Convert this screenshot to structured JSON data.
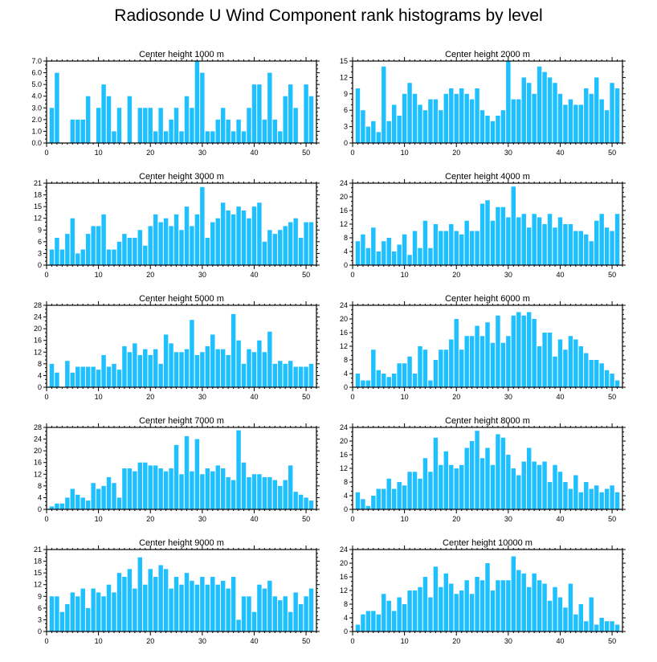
{
  "title": "Radiosonde U Wind Component rank histograms by level",
  "bar_color": "#1ec0ff",
  "chart_data": [
    {
      "type": "bar",
      "title": "Center height 1000 m",
      "ylim": [
        0,
        7
      ],
      "yticks": [
        "0.0",
        "1.0",
        "2.0",
        "3.0",
        "4.0",
        "5.0",
        "6.0",
        "7.0"
      ],
      "xlim": [
        0,
        52
      ],
      "xticks": [
        0,
        10,
        20,
        30,
        40,
        50
      ],
      "x": [
        1,
        2,
        3,
        4,
        5,
        6,
        7,
        8,
        9,
        10,
        11,
        12,
        13,
        14,
        15,
        16,
        17,
        18,
        19,
        20,
        21,
        22,
        23,
        24,
        25,
        26,
        27,
        28,
        29,
        30,
        31,
        32,
        33,
        34,
        35,
        36,
        37,
        38,
        39,
        40,
        41,
        42,
        43,
        44,
        45,
        46,
        47,
        48,
        49,
        50,
        51
      ],
      "values": [
        3,
        6,
        0,
        0,
        2,
        2,
        2,
        4,
        0,
        3,
        5,
        4,
        1,
        3,
        0,
        4,
        0,
        3,
        3,
        3,
        1,
        3,
        1,
        2,
        3,
        1,
        4,
        3,
        7,
        6,
        1,
        1,
        2,
        3,
        2,
        1,
        2,
        1,
        3,
        5,
        5,
        2,
        6,
        2,
        1,
        4,
        5,
        3,
        0,
        5,
        4
      ]
    },
    {
      "type": "bar",
      "title": "Center height 2000 m",
      "ylim": [
        0,
        15
      ],
      "yticks": [
        "0",
        "3",
        "6",
        "9",
        "12",
        "15"
      ],
      "xlim": [
        0,
        52
      ],
      "xticks": [
        0,
        10,
        20,
        30,
        40,
        50
      ],
      "x": [
        1,
        2,
        3,
        4,
        5,
        6,
        7,
        8,
        9,
        10,
        11,
        12,
        13,
        14,
        15,
        16,
        17,
        18,
        19,
        20,
        21,
        22,
        23,
        24,
        25,
        26,
        27,
        28,
        29,
        30,
        31,
        32,
        33,
        34,
        35,
        36,
        37,
        38,
        39,
        40,
        41,
        42,
        43,
        44,
        45,
        46,
        47,
        48,
        49,
        50,
        51
      ],
      "values": [
        10,
        6,
        3,
        4,
        2,
        14,
        4,
        7,
        5,
        9,
        11,
        9,
        7,
        6,
        8,
        8,
        6,
        9,
        10,
        9,
        10,
        9,
        8,
        10,
        6,
        5,
        4,
        5,
        6,
        15,
        8,
        8,
        12,
        11,
        9,
        14,
        13,
        12,
        11,
        9,
        7,
        8,
        7,
        7,
        10,
        9,
        12,
        8,
        6,
        11,
        10
      ]
    },
    {
      "type": "bar",
      "title": "Center height 3000 m",
      "ylim": [
        0,
        21
      ],
      "yticks": [
        "0",
        "3",
        "6",
        "9",
        "12",
        "15",
        "18",
        "21"
      ],
      "xlim": [
        0,
        52
      ],
      "xticks": [
        0,
        10,
        20,
        30,
        40,
        50
      ],
      "x": [
        1,
        2,
        3,
        4,
        5,
        6,
        7,
        8,
        9,
        10,
        11,
        12,
        13,
        14,
        15,
        16,
        17,
        18,
        19,
        20,
        21,
        22,
        23,
        24,
        25,
        26,
        27,
        28,
        29,
        30,
        31,
        32,
        33,
        34,
        35,
        36,
        37,
        38,
        39,
        40,
        41,
        42,
        43,
        44,
        45,
        46,
        47,
        48,
        49,
        50,
        51
      ],
      "values": [
        4,
        7,
        4,
        8,
        12,
        3,
        4,
        8,
        10,
        10,
        13,
        4,
        4,
        6,
        8,
        7,
        7,
        9,
        5,
        10,
        13,
        11,
        12,
        10,
        13,
        9,
        15,
        10,
        13,
        20,
        7,
        11,
        12,
        16,
        14,
        13,
        15,
        14,
        12,
        15,
        16,
        6,
        9,
        8,
        9,
        10,
        11,
        12,
        7,
        11,
        11
      ]
    },
    {
      "type": "bar",
      "title": "Center height 4000 m",
      "ylim": [
        0,
        24
      ],
      "yticks": [
        "0",
        "4",
        "8",
        "12",
        "16",
        "20",
        "24"
      ],
      "xlim": [
        0,
        52
      ],
      "xticks": [
        0,
        10,
        20,
        30,
        40,
        50
      ],
      "x": [
        1,
        2,
        3,
        4,
        5,
        6,
        7,
        8,
        9,
        10,
        11,
        12,
        13,
        14,
        15,
        16,
        17,
        18,
        19,
        20,
        21,
        22,
        23,
        24,
        25,
        26,
        27,
        28,
        29,
        30,
        31,
        32,
        33,
        34,
        35,
        36,
        37,
        38,
        39,
        40,
        41,
        42,
        43,
        44,
        45,
        46,
        47,
        48,
        49,
        50,
        51
      ],
      "values": [
        7,
        9,
        5,
        11,
        4,
        7,
        8,
        4,
        6,
        9,
        3,
        10,
        5,
        13,
        5,
        12,
        10,
        10,
        12,
        10,
        9,
        13,
        10,
        10,
        18,
        19,
        13,
        17,
        17,
        14,
        23,
        14,
        15,
        11,
        15,
        14,
        12,
        15,
        11,
        14,
        12,
        12,
        10,
        10,
        9,
        7,
        13,
        15,
        11,
        10,
        15
      ]
    },
    {
      "type": "bar",
      "title": "Center height 5000 m",
      "ylim": [
        0,
        28
      ],
      "yticks": [
        "0",
        "4",
        "8",
        "12",
        "16",
        "20",
        "24",
        "28"
      ],
      "xlim": [
        0,
        52
      ],
      "xticks": [
        0,
        10,
        20,
        30,
        40,
        50
      ],
      "x": [
        1,
        2,
        3,
        4,
        5,
        6,
        7,
        8,
        9,
        10,
        11,
        12,
        13,
        14,
        15,
        16,
        17,
        18,
        19,
        20,
        21,
        22,
        23,
        24,
        25,
        26,
        27,
        28,
        29,
        30,
        31,
        32,
        33,
        34,
        35,
        36,
        37,
        38,
        39,
        40,
        41,
        42,
        43,
        44,
        45,
        46,
        47,
        48,
        49,
        50,
        51
      ],
      "values": [
        8,
        5,
        0,
        9,
        5,
        7,
        7,
        7,
        7,
        6,
        11,
        7,
        8,
        6,
        14,
        12,
        15,
        11,
        13,
        11,
        13,
        8,
        18,
        15,
        12,
        12,
        13,
        23,
        11,
        12,
        14,
        18,
        13,
        13,
        11,
        25,
        16,
        8,
        13,
        12,
        16,
        12,
        19,
        8,
        9,
        8,
        9,
        7,
        7,
        7,
        8
      ]
    },
    {
      "type": "bar",
      "title": "Center height 6000 m",
      "ylim": [
        0,
        24
      ],
      "yticks": [
        "0",
        "4",
        "8",
        "12",
        "16",
        "20",
        "24"
      ],
      "xlim": [
        0,
        52
      ],
      "xticks": [
        0,
        10,
        20,
        30,
        40,
        50
      ],
      "x": [
        1,
        2,
        3,
        4,
        5,
        6,
        7,
        8,
        9,
        10,
        11,
        12,
        13,
        14,
        15,
        16,
        17,
        18,
        19,
        20,
        21,
        22,
        23,
        24,
        25,
        26,
        27,
        28,
        29,
        30,
        31,
        32,
        33,
        34,
        35,
        36,
        37,
        38,
        39,
        40,
        41,
        42,
        43,
        44,
        45,
        46,
        47,
        48,
        49,
        50,
        51
      ],
      "values": [
        4,
        2,
        2,
        11,
        5,
        4,
        3,
        4,
        7,
        7,
        9,
        4,
        12,
        11,
        2,
        8,
        11,
        11,
        14,
        20,
        11,
        15,
        15,
        18,
        15,
        19,
        13,
        21,
        13,
        15,
        21,
        22,
        21,
        22,
        20,
        12,
        16,
        16,
        9,
        14,
        11,
        15,
        14,
        12,
        10,
        8,
        8,
        7,
        5,
        4,
        2
      ]
    },
    {
      "type": "bar",
      "title": "Center height 7000 m",
      "ylim": [
        0,
        28
      ],
      "yticks": [
        "0",
        "4",
        "8",
        "12",
        "16",
        "20",
        "24",
        "28"
      ],
      "xlim": [
        0,
        52
      ],
      "xticks": [
        0,
        10,
        20,
        30,
        40,
        50
      ],
      "x": [
        1,
        2,
        3,
        4,
        5,
        6,
        7,
        8,
        9,
        10,
        11,
        12,
        13,
        14,
        15,
        16,
        17,
        18,
        19,
        20,
        21,
        22,
        23,
        24,
        25,
        26,
        27,
        28,
        29,
        30,
        31,
        32,
        33,
        34,
        35,
        36,
        37,
        38,
        39,
        40,
        41,
        42,
        43,
        44,
        45,
        46,
        47,
        48,
        49,
        50,
        51
      ],
      "values": [
        1,
        2,
        2,
        4,
        7,
        5,
        4,
        3,
        9,
        7,
        8,
        11,
        9,
        4,
        14,
        14,
        13,
        16,
        16,
        15,
        15,
        14,
        13,
        14,
        22,
        12,
        25,
        13,
        24,
        12,
        14,
        13,
        15,
        14,
        11,
        10,
        27,
        16,
        11,
        12,
        12,
        11,
        11,
        10,
        8,
        10,
        15,
        6,
        5,
        4,
        3
      ]
    },
    {
      "type": "bar",
      "title": "Center height 8000 m",
      "ylim": [
        0,
        24
      ],
      "yticks": [
        "0",
        "4",
        "8",
        "12",
        "16",
        "20",
        "24"
      ],
      "xlim": [
        0,
        52
      ],
      "xticks": [
        0,
        10,
        20,
        30,
        40,
        50
      ],
      "x": [
        1,
        2,
        3,
        4,
        5,
        6,
        7,
        8,
        9,
        10,
        11,
        12,
        13,
        14,
        15,
        16,
        17,
        18,
        19,
        20,
        21,
        22,
        23,
        24,
        25,
        26,
        27,
        28,
        29,
        30,
        31,
        32,
        33,
        34,
        35,
        36,
        37,
        38,
        39,
        40,
        41,
        42,
        43,
        44,
        45,
        46,
        47,
        48,
        49,
        50,
        51
      ],
      "values": [
        5,
        3,
        1,
        4,
        6,
        6,
        9,
        6,
        8,
        7,
        11,
        11,
        9,
        15,
        11,
        21,
        13,
        17,
        13,
        12,
        13,
        18,
        20,
        23,
        15,
        18,
        13,
        22,
        21,
        16,
        12,
        10,
        14,
        18,
        14,
        13,
        14,
        8,
        13,
        11,
        8,
        6,
        10,
        5,
        8,
        6,
        7,
        5,
        6,
        7,
        5
      ]
    },
    {
      "type": "bar",
      "title": "Center height 9000 m",
      "ylim": [
        0,
        21
      ],
      "yticks": [
        "0",
        "3",
        "6",
        "9",
        "12",
        "15",
        "18",
        "21"
      ],
      "xlim": [
        0,
        52
      ],
      "xticks": [
        0,
        10,
        20,
        30,
        40,
        50
      ],
      "x": [
        1,
        2,
        3,
        4,
        5,
        6,
        7,
        8,
        9,
        10,
        11,
        12,
        13,
        14,
        15,
        16,
        17,
        18,
        19,
        20,
        21,
        22,
        23,
        24,
        25,
        26,
        27,
        28,
        29,
        30,
        31,
        32,
        33,
        34,
        35,
        36,
        37,
        38,
        39,
        40,
        41,
        42,
        43,
        44,
        45,
        46,
        47,
        48,
        49,
        50,
        51
      ],
      "values": [
        9,
        9,
        5,
        7,
        10,
        9,
        11,
        6,
        11,
        10,
        9,
        12,
        10,
        15,
        14,
        16,
        11,
        19,
        12,
        16,
        14,
        17,
        16,
        11,
        14,
        12,
        15,
        13,
        12,
        14,
        12,
        14,
        12,
        13,
        11,
        14,
        3,
        9,
        9,
        5,
        12,
        11,
        13,
        9,
        8,
        9,
        5,
        10,
        7,
        9,
        11
      ]
    },
    {
      "type": "bar",
      "title": "Center height 10000 m",
      "ylim": [
        0,
        24
      ],
      "yticks": [
        "0",
        "4",
        "8",
        "12",
        "16",
        "20",
        "24"
      ],
      "xlim": [
        0,
        52
      ],
      "xticks": [
        0,
        10,
        20,
        30,
        40,
        50
      ],
      "x": [
        1,
        2,
        3,
        4,
        5,
        6,
        7,
        8,
        9,
        10,
        11,
        12,
        13,
        14,
        15,
        16,
        17,
        18,
        19,
        20,
        21,
        22,
        23,
        24,
        25,
        26,
        27,
        28,
        29,
        30,
        31,
        32,
        33,
        34,
        35,
        36,
        37,
        38,
        39,
        40,
        41,
        42,
        43,
        44,
        45,
        46,
        47,
        48,
        49,
        50,
        51
      ],
      "values": [
        2,
        5,
        6,
        6,
        5,
        11,
        9,
        6,
        10,
        8,
        12,
        12,
        13,
        16,
        10,
        19,
        13,
        17,
        14,
        11,
        12,
        15,
        11,
        16,
        15,
        20,
        12,
        15,
        15,
        15,
        22,
        18,
        17,
        13,
        17,
        15,
        14,
        9,
        13,
        10,
        7,
        14,
        5,
        8,
        3,
        10,
        2,
        4,
        3,
        3,
        2
      ]
    }
  ]
}
